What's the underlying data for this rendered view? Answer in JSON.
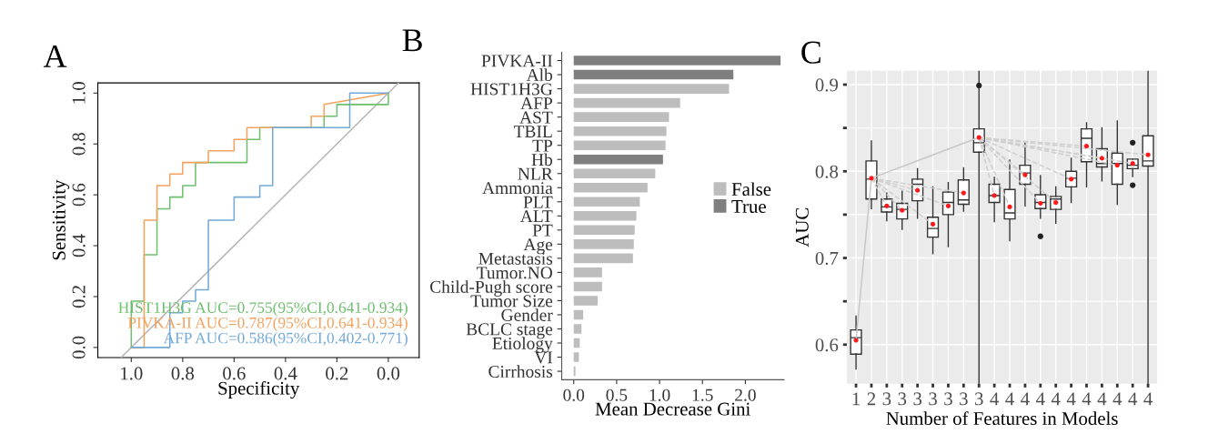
{
  "chart_data": [
    {
      "type": "line",
      "title": "A",
      "xlabel": "Specificity",
      "ylabel": "Sensitivity",
      "xlim": [
        1.13,
        -0.12
      ],
      "ylim": [
        -0.04,
        1.04
      ],
      "xticks": [
        {
          "value": 1,
          "label": "1.0"
        },
        {
          "value": 0.8,
          "label": "0.8"
        },
        {
          "value": 0.6,
          "label": "0.6"
        },
        {
          "value": 0.4,
          "label": "0.4"
        },
        {
          "value": 0.2,
          "label": "0.2"
        },
        {
          "value": 0,
          "label": "0.0"
        }
      ],
      "yticks": [
        {
          "value": 0,
          "label": "0.0"
        },
        {
          "value": 0.2,
          "label": "0.2"
        },
        {
          "value": 0.4,
          "label": "0.4"
        },
        {
          "value": 0.6,
          "label": "0.6"
        },
        {
          "value": 0.8,
          "label": "0.8"
        },
        {
          "value": 1,
          "label": "1.0"
        }
      ],
      "legend": "bottom right",
      "grid": false,
      "series": [
        {
          "color": "#b5b5b5",
          "x": [
            1.04,
            -0.04
          ],
          "values": [
            -0.04,
            1.04
          ]
        },
        {
          "name": "HIST1H3G AUC=0.755(95%CI,0.641-0.934)",
          "color": "#6dbf6d",
          "x": [
            1,
            1,
            0.95,
            0.95,
            0.9,
            0.9,
            0.85,
            0.85,
            0.8,
            0.8,
            0.75,
            0.75,
            0.55,
            0.55,
            0.5,
            0.5,
            0.25,
            0.25,
            0.2,
            0.2,
            0,
            0
          ],
          "values": [
            0,
            0.182,
            0.182,
            0.364,
            0.364,
            0.545,
            0.545,
            0.591,
            0.591,
            0.636,
            0.636,
            0.727,
            0.727,
            0.818,
            0.818,
            0.864,
            0.864,
            0.909,
            0.909,
            0.955,
            0.955,
            1
          ]
        },
        {
          "name": "PIVKA-II AUC=0.787(95%CI,0.641-0.934)",
          "color": "#f4a25e",
          "x": [
            1,
            0.95,
            0.95,
            0.9,
            0.9,
            0.85,
            0.85,
            0.8,
            0.8,
            0.7,
            0.7,
            0.6,
            0.6,
            0.55,
            0.55,
            0.3,
            0.3,
            0.25,
            0.25,
            0
          ],
          "values": [
            0,
            0,
            0.5,
            0.5,
            0.636,
            0.636,
            0.682,
            0.682,
            0.727,
            0.727,
            0.773,
            0.773,
            0.818,
            0.818,
            0.864,
            0.864,
            0.909,
            0.909,
            0.955,
            1
          ]
        },
        {
          "name": "AFP AUC=0.586(95%CI,0.402-0.771)",
          "color": "#73a9d8",
          "x": [
            1,
            0.85,
            0.85,
            0.8,
            0.8,
            0.75,
            0.75,
            0.7,
            0.7,
            0.6,
            0.6,
            0.5,
            0.5,
            0.45,
            0.45,
            0.15,
            0.15,
            0
          ],
          "values": [
            0,
            0,
            0.136,
            0.136,
            0.182,
            0.182,
            0.227,
            0.227,
            0.5,
            0.5,
            0.591,
            0.591,
            0.636,
            0.636,
            0.864,
            0.864,
            1,
            1
          ]
        }
      ]
    },
    {
      "type": "bar",
      "orientation": "horizontal",
      "title": "B",
      "xlabel": "Mean Decrease Gini",
      "xlim": [
        -0.14,
        2.45
      ],
      "xticks": [
        {
          "value": 0,
          "label": "0.0"
        },
        0.5,
        {
          "value": 1,
          "label": "1.0"
        },
        1.5,
        {
          "value": 2,
          "label": "2.0"
        }
      ],
      "legend": "right",
      "grid": false,
      "categories": [
        "PIVKA-II",
        "Alb",
        "HIST1H3G",
        "AFP",
        "AST",
        "TBIL",
        "TP",
        "Hb",
        "NLR",
        "Ammonia",
        "PLT",
        "ALT",
        "PT",
        "Age",
        "Metastasis",
        "Tumor.NO",
        "Child-Pugh score",
        "Tumor Size",
        "Gender",
        "BCLC stage",
        "Etiology",
        "VI",
        "Cirrhosis"
      ],
      "series": [
        {
          "name": "False",
          "color": "#bdbdbd",
          "values": [
            null,
            null,
            1.81,
            1.24,
            1.11,
            1.08,
            1.07,
            null,
            0.95,
            0.86,
            0.77,
            0.73,
            0.71,
            0.7,
            0.69,
            0.33,
            0.33,
            0.28,
            0.11,
            0.09,
            0.07,
            0.06,
            0.02
          ]
        },
        {
          "name": "True",
          "color": "#7f7f7f",
          "values": [
            2.41,
            1.86,
            null,
            null,
            null,
            null,
            null,
            1.04,
            null,
            null,
            null,
            null,
            null,
            null,
            null,
            null,
            null,
            null,
            null,
            null,
            null,
            null,
            null
          ]
        }
      ]
    },
    {
      "type": "box",
      "title": "C",
      "xlabel": "Number of Features in Models",
      "ylabel": "AUC",
      "ylim": [
        0.555,
        0.916
      ],
      "yticks": [
        0.6,
        {
          "value": 0.65,
          "label": null
        },
        0.7,
        {
          "value": 0.75,
          "label": null
        },
        0.8,
        {
          "value": 0.85,
          "label": null
        },
        0.9
      ],
      "grid": true,
      "categories": [
        "1",
        "2",
        "3",
        "3",
        "3",
        "3",
        "3",
        "3",
        "3",
        "4",
        "4",
        "4",
        "4",
        "4",
        "4",
        "4",
        "4",
        "4",
        "4",
        "4"
      ],
      "boxes": [
        {
          "low": 0.572,
          "q1": 0.589,
          "median": 0.608,
          "q3": 0.617,
          "high": 0.633
        },
        {
          "low": 0.757,
          "q1": 0.768,
          "median": 0.791,
          "q3": 0.812,
          "high": 0.835
        },
        {
          "low": 0.743,
          "q1": 0.753,
          "median": 0.759,
          "q3": 0.768,
          "high": 0.775
        },
        {
          "low": 0.733,
          "q1": 0.745,
          "median": 0.756,
          "q3": 0.763,
          "high": 0.777
        },
        {
          "low": 0.746,
          "q1": 0.766,
          "median": 0.785,
          "q3": 0.791,
          "high": 0.803
        },
        {
          "low": 0.705,
          "q1": 0.724,
          "median": 0.734,
          "q3": 0.747,
          "high": 0.782
        },
        {
          "low": 0.713,
          "q1": 0.75,
          "median": 0.764,
          "q3": 0.776,
          "high": 0.787
        },
        {
          "low": 0.754,
          "q1": 0.762,
          "median": 0.767,
          "q3": 0.79,
          "high": 0.804
        },
        {
          "low": 0.555,
          "q1": 0.822,
          "median": 0.833,
          "q3": 0.849,
          "high": 0.916,
          "outliers": [
            0.899
          ]
        },
        {
          "low": 0.742,
          "q1": 0.764,
          "median": 0.772,
          "q3": 0.785,
          "high": 0.793
        },
        {
          "low": 0.72,
          "q1": 0.745,
          "median": 0.752,
          "q3": 0.779,
          "high": 0.813
        },
        {
          "low": 0.76,
          "q1": 0.785,
          "median": 0.798,
          "q3": 0.807,
          "high": 0.834
        },
        {
          "low": 0.746,
          "q1": 0.757,
          "median": 0.764,
          "q3": 0.773,
          "high": 0.795,
          "outliers": [
            0.725
          ]
        },
        {
          "low": 0.74,
          "q1": 0.756,
          "median": 0.768,
          "q3": 0.771,
          "high": 0.782
        },
        {
          "low": 0.764,
          "q1": 0.782,
          "median": 0.792,
          "q3": 0.8,
          "high": 0.815
        },
        {
          "low": 0.782,
          "q1": 0.811,
          "median": 0.838,
          "q3": 0.849,
          "high": 0.856
        },
        {
          "low": 0.789,
          "q1": 0.805,
          "median": 0.809,
          "q3": 0.826,
          "high": 0.85
        },
        {
          "low": 0.762,
          "q1": 0.785,
          "median": 0.809,
          "q3": 0.821,
          "high": 0.858
        },
        {
          "low": 0.794,
          "q1": 0.803,
          "median": 0.807,
          "q3": 0.814,
          "high": 0.814,
          "outliers": [
            0.833,
            0.784
          ]
        },
        {
          "low": 0.555,
          "q1": 0.806,
          "median": 0.812,
          "q3": 0.841,
          "high": 0.916
        }
      ],
      "series": [
        {
          "type": "line",
          "color": "#c8c8c8",
          "line_style": "solid",
          "values": [
            0.605,
            0.792,
            null,
            null,
            null,
            null,
            null,
            null,
            0.839,
            null,
            null,
            null,
            null,
            null,
            null,
            null,
            null,
            null,
            null,
            null
          ]
        },
        {
          "type": "line",
          "color": "#cfcfcf",
          "line_style": "dashed",
          "values": [
            null,
            0.792,
            0.76,
            null,
            null,
            null,
            null,
            null,
            null,
            null,
            null,
            null,
            null,
            null,
            null,
            null,
            null,
            null,
            null,
            null
          ]
        },
        {
          "type": "line",
          "color": "#cfcfcf",
          "line_style": "dashed",
          "values": [
            null,
            0.792,
            null,
            0.755,
            null,
            null,
            null,
            null,
            null,
            null,
            null,
            null,
            null,
            null,
            null,
            null,
            null,
            null,
            null,
            null
          ]
        },
        {
          "type": "line",
          "color": "#cfcfcf",
          "line_style": "dashed",
          "values": [
            null,
            0.792,
            null,
            null,
            0.778,
            null,
            null,
            null,
            null,
            null,
            null,
            null,
            null,
            null,
            null,
            null,
            null,
            null,
            null,
            null
          ]
        },
        {
          "type": "line",
          "color": "#cfcfcf",
          "line_style": "dashed",
          "values": [
            null,
            0.792,
            null,
            null,
            null,
            0.739,
            null,
            null,
            null,
            null,
            null,
            null,
            null,
            null,
            null,
            null,
            null,
            null,
            null,
            null
          ]
        },
        {
          "type": "line",
          "color": "#cfcfcf",
          "line_style": "dashed",
          "values": [
            null,
            0.792,
            null,
            null,
            null,
            null,
            0.76,
            null,
            null,
            null,
            null,
            null,
            null,
            null,
            null,
            null,
            null,
            null,
            null,
            null
          ]
        },
        {
          "type": "line",
          "color": "#cfcfcf",
          "line_style": "dashed",
          "values": [
            null,
            0.792,
            null,
            null,
            null,
            null,
            null,
            0.775,
            null,
            null,
            null,
            null,
            null,
            null,
            null,
            null,
            null,
            null,
            null,
            null
          ]
        },
        {
          "type": "line",
          "color": "#cfcfcf",
          "line_style": "dashed",
          "values": [
            null,
            null,
            null,
            null,
            null,
            null,
            null,
            null,
            0.839,
            0.772,
            null,
            null,
            null,
            null,
            null,
            null,
            null,
            null,
            null,
            null
          ]
        },
        {
          "type": "line",
          "color": "#cfcfcf",
          "line_style": "dashed",
          "values": [
            null,
            null,
            null,
            null,
            null,
            null,
            null,
            null,
            0.839,
            null,
            0.759,
            null,
            null,
            null,
            null,
            null,
            null,
            null,
            null,
            null
          ]
        },
        {
          "type": "line",
          "color": "#cfcfcf",
          "line_style": "dashed",
          "values": [
            null,
            null,
            null,
            null,
            null,
            null,
            null,
            null,
            0.839,
            null,
            null,
            0.796,
            null,
            null,
            null,
            null,
            null,
            null,
            null,
            null
          ]
        },
        {
          "type": "line",
          "color": "#cfcfcf",
          "line_style": "dashed",
          "values": [
            null,
            null,
            null,
            null,
            null,
            null,
            null,
            null,
            0.839,
            null,
            null,
            null,
            0.763,
            null,
            null,
            null,
            null,
            null,
            null,
            null
          ]
        },
        {
          "type": "line",
          "color": "#cfcfcf",
          "line_style": "dashed",
          "values": [
            null,
            null,
            null,
            null,
            null,
            null,
            null,
            null,
            0.839,
            null,
            null,
            null,
            null,
            0.764,
            null,
            null,
            null,
            null,
            null,
            null
          ]
        },
        {
          "type": "line",
          "color": "#cfcfcf",
          "line_style": "dashed",
          "values": [
            null,
            null,
            null,
            null,
            null,
            null,
            null,
            null,
            0.839,
            null,
            null,
            null,
            null,
            null,
            0.791,
            null,
            null,
            null,
            null,
            null
          ]
        },
        {
          "type": "line",
          "color": "#cfcfcf",
          "line_style": "dashed",
          "values": [
            null,
            null,
            null,
            null,
            null,
            null,
            null,
            null,
            0.839,
            null,
            null,
            null,
            null,
            null,
            null,
            0.829,
            null,
            null,
            null,
            null
          ]
        },
        {
          "type": "line",
          "color": "#cfcfcf",
          "line_style": "dashed",
          "values": [
            null,
            null,
            null,
            null,
            null,
            null,
            null,
            null,
            0.839,
            null,
            null,
            null,
            null,
            null,
            null,
            null,
            0.815,
            null,
            null,
            null
          ]
        },
        {
          "type": "line",
          "color": "#cfcfcf",
          "line_style": "dashed",
          "values": [
            null,
            null,
            null,
            null,
            null,
            null,
            null,
            null,
            0.839,
            null,
            null,
            null,
            null,
            null,
            null,
            null,
            null,
            0.807,
            null,
            null
          ]
        },
        {
          "type": "line",
          "color": "#cfcfcf",
          "line_style": "dashed",
          "values": [
            null,
            null,
            null,
            null,
            null,
            null,
            null,
            null,
            0.839,
            null,
            null,
            null,
            null,
            null,
            null,
            null,
            null,
            null,
            0.809,
            null
          ]
        },
        {
          "type": "line",
          "color": "#cfcfcf",
          "line_style": "dashed",
          "values": [
            null,
            null,
            null,
            null,
            null,
            null,
            null,
            null,
            0.839,
            null,
            null,
            null,
            null,
            null,
            null,
            null,
            null,
            null,
            null,
            0.819
          ]
        },
        {
          "type": "scatter",
          "color": "#ff1a1a",
          "marker": "circle",
          "values": [
            0.605,
            0.792,
            0.76,
            0.755,
            0.778,
            0.739,
            0.76,
            0.775,
            0.839,
            0.772,
            0.759,
            0.796,
            0.763,
            0.764,
            0.791,
            0.829,
            0.815,
            0.807,
            0.809,
            0.819
          ]
        }
      ]
    }
  ]
}
